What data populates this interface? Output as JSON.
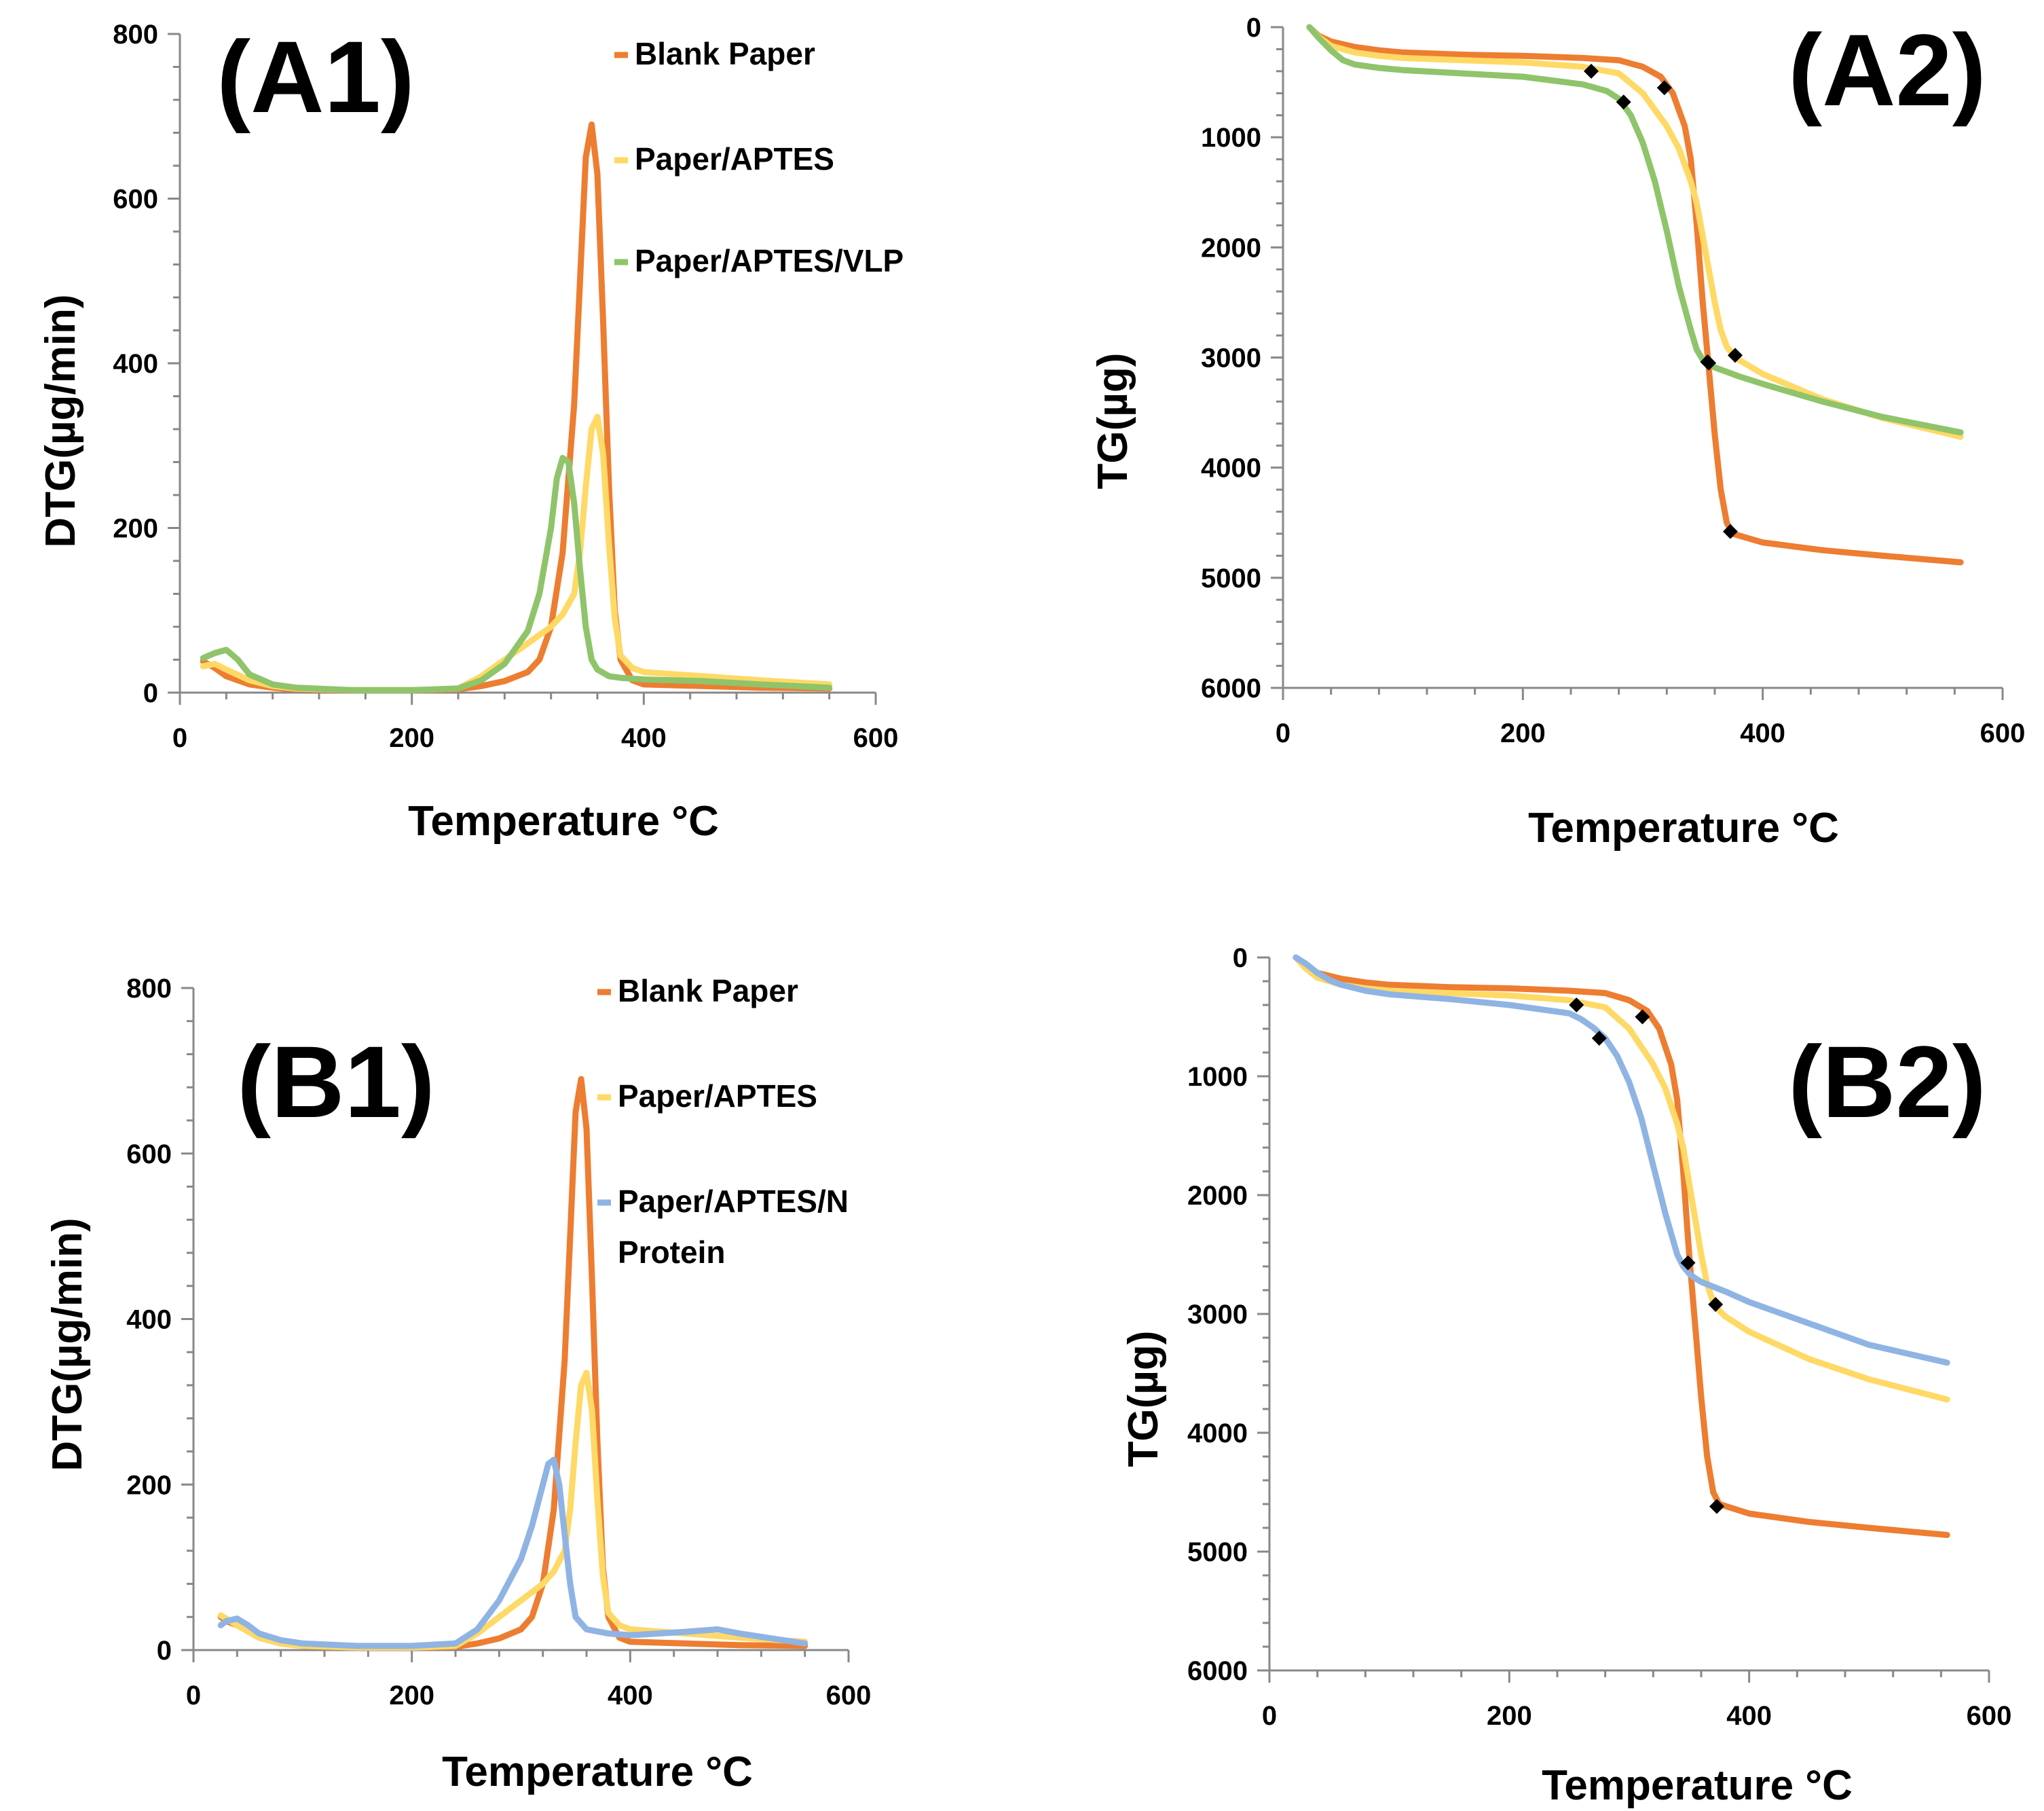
{
  "colors": {
    "blank": "#ED7D31",
    "aptes": "#FFD966",
    "vlp": "#8FC46A",
    "nprot": "#8FB4E3",
    "axis": "#888888",
    "marker": "#000000"
  },
  "chart_data": [
    {
      "id": "A1",
      "type": "line",
      "panel_label": "(A1)",
      "xlabel": "Temperature °C",
      "ylabel": "DTG(µg/min)",
      "xlim": [
        0,
        600
      ],
      "ylim": [
        0,
        800
      ],
      "xticks": [
        "0",
        "200",
        "400",
        "600"
      ],
      "yticks": [
        "0",
        "200",
        "400",
        "600",
        "800"
      ],
      "legend": [
        "Blank Paper",
        "Paper/APTES",
        "Paper/APTES/VLP"
      ],
      "series": [
        {
          "name": "Blank Paper",
          "color": "#ED7D31",
          "x": [
            20,
            30,
            40,
            60,
            80,
            100,
            150,
            200,
            240,
            260,
            280,
            300,
            310,
            320,
            330,
            340,
            345,
            350,
            355,
            360,
            365,
            370,
            375,
            380,
            390,
            400,
            450,
            500,
            560
          ],
          "y": [
            38,
            30,
            20,
            10,
            6,
            4,
            3,
            3,
            4,
            8,
            14,
            25,
            40,
            80,
            170,
            350,
            500,
            650,
            690,
            630,
            450,
            250,
            100,
            40,
            15,
            10,
            8,
            6,
            5
          ]
        },
        {
          "name": "Paper/APTES",
          "color": "#FFD966",
          "x": [
            20,
            30,
            40,
            60,
            80,
            100,
            150,
            200,
            240,
            260,
            280,
            300,
            320,
            330,
            340,
            345,
            350,
            355,
            360,
            365,
            370,
            375,
            380,
            390,
            400,
            450,
            500,
            560
          ],
          "y": [
            32,
            35,
            28,
            15,
            8,
            5,
            3,
            3,
            5,
            20,
            40,
            60,
            80,
            95,
            120,
            170,
            250,
            320,
            335,
            290,
            180,
            90,
            45,
            30,
            25,
            20,
            15,
            10
          ]
        },
        {
          "name": "Paper/APTES/VLP",
          "color": "#8FC46A",
          "x": [
            20,
            30,
            40,
            50,
            60,
            80,
            100,
            150,
            200,
            240,
            260,
            280,
            300,
            310,
            320,
            325,
            330,
            335,
            340,
            345,
            350,
            355,
            360,
            370,
            380,
            400,
            450,
            500,
            560
          ],
          "y": [
            42,
            48,
            52,
            40,
            22,
            10,
            6,
            3,
            3,
            5,
            15,
            35,
            75,
            120,
            200,
            260,
            285,
            280,
            230,
            150,
            80,
            40,
            28,
            20,
            18,
            16,
            14,
            10,
            6
          ]
        }
      ]
    },
    {
      "id": "A2",
      "type": "line",
      "panel_label": "(A2)",
      "xlabel": "Temperature °C",
      "ylabel": "TG(µg)",
      "xlim": [
        0,
        600
      ],
      "ylim": [
        0,
        6000
      ],
      "y_reversed": true,
      "xticks": [
        "0",
        "200",
        "400",
        "600"
      ],
      "yticks": [
        "0",
        "1000",
        "2000",
        "3000",
        "4000",
        "5000",
        "6000"
      ],
      "series": [
        {
          "name": "Blank Paper",
          "color": "#ED7D31",
          "x": [
            22,
            30,
            40,
            60,
            80,
            100,
            150,
            200,
            250,
            280,
            300,
            315,
            325,
            335,
            340,
            345,
            350,
            355,
            360,
            365,
            370,
            375,
            400,
            450,
            500,
            565
          ],
          "y": [
            0,
            80,
            130,
            180,
            210,
            230,
            250,
            260,
            280,
            300,
            360,
            450,
            600,
            900,
            1200,
            1800,
            2500,
            3100,
            3700,
            4200,
            4500,
            4600,
            4680,
            4750,
            4800,
            4860
          ],
          "markers": [
            [
              318,
              550
            ],
            [
              355,
              3050
            ],
            [
              373,
              4580
            ]
          ]
        },
        {
          "name": "Paper/APTES",
          "color": "#FFD966",
          "x": [
            22,
            30,
            40,
            60,
            80,
            100,
            150,
            200,
            250,
            280,
            300,
            320,
            330,
            340,
            345,
            350,
            355,
            360,
            365,
            370,
            375,
            380,
            400,
            450,
            500,
            565
          ],
          "y": [
            0,
            90,
            170,
            230,
            260,
            280,
            300,
            320,
            360,
            420,
            600,
            900,
            1100,
            1400,
            1600,
            1900,
            2200,
            2500,
            2750,
            2900,
            2970,
            3020,
            3150,
            3380,
            3550,
            3720
          ],
          "markers": [
            [
              377,
              2980
            ]
          ]
        },
        {
          "name": "Paper/APTES/VLP",
          "color": "#8FC46A",
          "x": [
            22,
            30,
            40,
            50,
            60,
            80,
            100,
            150,
            200,
            250,
            270,
            280,
            290,
            300,
            310,
            320,
            330,
            340,
            345,
            350,
            355,
            360,
            370,
            380,
            400,
            450,
            500,
            565
          ],
          "y": [
            0,
            100,
            210,
            300,
            340,
            370,
            390,
            420,
            450,
            520,
            580,
            650,
            800,
            1050,
            1400,
            1850,
            2350,
            2750,
            2930,
            3020,
            3060,
            3090,
            3130,
            3170,
            3240,
            3400,
            3540,
            3680
          ],
          "markers": [
            [
              257,
              400
            ],
            [
              284,
              680
            ],
            [
              354,
              3040
            ]
          ]
        }
      ]
    },
    {
      "id": "B1",
      "type": "line",
      "panel_label": "(B1)",
      "xlabel": "Temperature  °C",
      "ylabel": "DTG(µg/min)",
      "xlim": [
        0,
        600
      ],
      "ylim": [
        0,
        800
      ],
      "xticks": [
        "0",
        "200",
        "400",
        "600"
      ],
      "yticks": [
        "0",
        "200",
        "400",
        "600",
        "800"
      ],
      "legend": [
        "Blank Paper",
        "Paper/APTES",
        "Paper/APTES/N Protein"
      ],
      "series": [
        {
          "name": "Blank Paper",
          "color": "#ED7D31",
          "x": [
            25,
            30,
            40,
            60,
            80,
            100,
            150,
            200,
            240,
            260,
            280,
            300,
            310,
            320,
            330,
            340,
            345,
            350,
            355,
            360,
            365,
            370,
            375,
            380,
            390,
            400,
            450,
            500,
            560
          ],
          "y": [
            40,
            35,
            30,
            15,
            8,
            5,
            3,
            3,
            4,
            8,
            14,
            25,
            40,
            80,
            170,
            350,
            500,
            650,
            690,
            630,
            450,
            250,
            100,
            40,
            15,
            10,
            8,
            6,
            5
          ]
        },
        {
          "name": "Paper/APTES",
          "color": "#FFD966",
          "x": [
            25,
            30,
            40,
            60,
            80,
            100,
            150,
            200,
            240,
            260,
            280,
            300,
            320,
            330,
            340,
            345,
            350,
            355,
            360,
            365,
            370,
            375,
            380,
            390,
            400,
            450,
            500,
            560
          ],
          "y": [
            42,
            38,
            30,
            15,
            8,
            5,
            3,
            3,
            5,
            20,
            40,
            60,
            80,
            95,
            120,
            170,
            250,
            320,
            335,
            290,
            180,
            90,
            45,
            30,
            25,
            20,
            15,
            10
          ]
        },
        {
          "name": "Paper/APTES/N Protein",
          "color": "#8FB4E3",
          "x": [
            25,
            30,
            40,
            50,
            60,
            80,
            100,
            150,
            200,
            240,
            260,
            280,
            300,
            310,
            320,
            325,
            330,
            335,
            340,
            345,
            350,
            360,
            380,
            400,
            450,
            480,
            500,
            560
          ],
          "y": [
            30,
            35,
            38,
            30,
            20,
            12,
            8,
            5,
            5,
            8,
            25,
            60,
            110,
            150,
            200,
            225,
            230,
            200,
            140,
            80,
            40,
            25,
            20,
            18,
            22,
            25,
            20,
            8
          ]
        }
      ]
    },
    {
      "id": "B2",
      "type": "line",
      "panel_label": "(B2)",
      "xlabel": "Temperature  °C",
      "ylabel": "TG(µg)",
      "xlim": [
        0,
        600
      ],
      "ylim": [
        0,
        6000
      ],
      "y_reversed": true,
      "xticks": [
        "0",
        "200",
        "400",
        "600"
      ],
      "yticks": [
        "0",
        "1000",
        "2000",
        "3000",
        "4000",
        "5000",
        "6000"
      ],
      "series": [
        {
          "name": "Blank Paper",
          "color": "#ED7D31",
          "x": [
            22,
            30,
            40,
            60,
            80,
            100,
            150,
            200,
            250,
            280,
            300,
            315,
            325,
            335,
            340,
            345,
            350,
            355,
            360,
            365,
            370,
            375,
            400,
            450,
            500,
            565
          ],
          "y": [
            0,
            80,
            130,
            180,
            210,
            230,
            250,
            260,
            280,
            300,
            360,
            450,
            600,
            900,
            1200,
            1800,
            2500,
            3100,
            3700,
            4200,
            4500,
            4600,
            4680,
            4750,
            4800,
            4860
          ],
          "markers": [
            [
              311,
              500
            ],
            [
              349,
              2570
            ],
            [
              373,
              4620
            ]
          ]
        },
        {
          "name": "Paper/APTES",
          "color": "#FFD966",
          "x": [
            22,
            30,
            40,
            60,
            80,
            100,
            150,
            200,
            250,
            280,
            300,
            320,
            330,
            340,
            345,
            350,
            355,
            360,
            365,
            370,
            375,
            380,
            400,
            450,
            500,
            565
          ],
          "y": [
            0,
            90,
            170,
            230,
            260,
            280,
            300,
            320,
            360,
            420,
            600,
            900,
            1100,
            1400,
            1600,
            1900,
            2200,
            2500,
            2750,
            2900,
            2970,
            3020,
            3150,
            3380,
            3550,
            3720
          ],
          "markers": [
            [
              256,
              400
            ],
            [
              372,
              2920
            ]
          ]
        },
        {
          "name": "Paper/APTES/N Protein",
          "color": "#8FB4E3",
          "x": [
            22,
            30,
            40,
            50,
            60,
            80,
            100,
            150,
            200,
            250,
            260,
            270,
            280,
            290,
            300,
            310,
            320,
            330,
            340,
            345,
            350,
            355,
            360,
            380,
            400,
            450,
            500,
            565
          ],
          "y": [
            0,
            50,
            130,
            190,
            230,
            280,
            310,
            350,
            400,
            470,
            520,
            590,
            680,
            830,
            1050,
            1350,
            1750,
            2150,
            2500,
            2600,
            2660,
            2700,
            2730,
            2810,
            2900,
            3080,
            3260,
            3410
          ],
          "markers": [
            [
              275,
              680
            ]
          ]
        }
      ]
    }
  ]
}
